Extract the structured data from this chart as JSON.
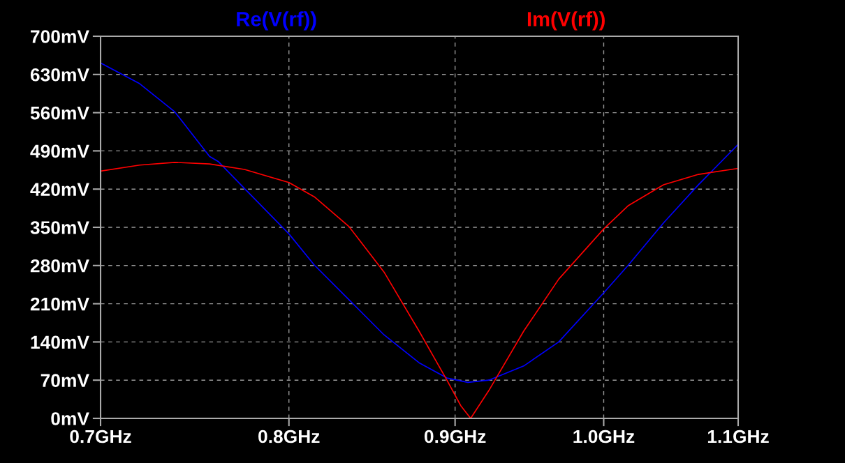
{
  "chart_data": {
    "type": "line",
    "series": [
      {
        "name": "Re(V(rf))",
        "color": "#0000ff",
        "x": [
          0.7,
          0.7197,
          0.7377,
          0.7562,
          0.7611,
          0.7752,
          0.8,
          0.8145,
          0.8349,
          0.8558,
          0.8773,
          0.8948,
          0.9082,
          0.9218,
          0.9449,
          0.9686,
          1.0,
          1.0177,
          1.0433,
          1.0695,
          1.1
        ],
        "values": [
          651,
          613,
          562,
          480,
          470,
          421,
          338,
          281,
          217,
          153,
          102,
          74,
          66,
          70,
          96,
          140,
          230,
          281,
          358,
          428,
          502
        ]
      },
      {
        "name": "Im(V(rf))",
        "color": "#ff0000",
        "x": [
          0.7,
          0.7197,
          0.7377,
          0.7562,
          0.7752,
          0.8,
          0.8145,
          0.8349,
          0.8558,
          0.8773,
          0.8948,
          0.9037,
          0.91,
          0.9218,
          0.9449,
          0.9686,
          1.0,
          1.0177,
          1.0433,
          1.0695,
          1.1
        ],
        "values": [
          453,
          464,
          469,
          466,
          456,
          432,
          406,
          351,
          268,
          160,
          70,
          23,
          0,
          51,
          160,
          255,
          347,
          390,
          428,
          447,
          458
        ]
      }
    ],
    "log": "x",
    "xlim": [
      0.7,
      1.1
    ],
    "xticks": [
      {
        "value": 0.7,
        "label": "0.7GHz"
      },
      {
        "value": 0.8,
        "label": "0.8GHz"
      },
      {
        "value": 0.9,
        "label": "0.9GHz"
      },
      {
        "value": 1.0,
        "label": "1.0GHz"
      },
      {
        "value": 1.1,
        "label": "1.1GHz"
      }
    ],
    "ylim": [
      0,
      700
    ],
    "yticks": [
      {
        "value": 0,
        "label": "0mV"
      },
      {
        "value": 70,
        "label": "70mV"
      },
      {
        "value": 140,
        "label": "140mV"
      },
      {
        "value": 210,
        "label": "210mV"
      },
      {
        "value": 280,
        "label": "280mV"
      },
      {
        "value": 350,
        "label": "350mV"
      },
      {
        "value": 420,
        "label": "420mV"
      },
      {
        "value": 490,
        "label": "490mV"
      },
      {
        "value": 560,
        "label": "560mV"
      },
      {
        "value": 630,
        "label": "630mV"
      },
      {
        "value": 700,
        "label": "700mV"
      }
    ],
    "grid": true,
    "legend": "top"
  }
}
